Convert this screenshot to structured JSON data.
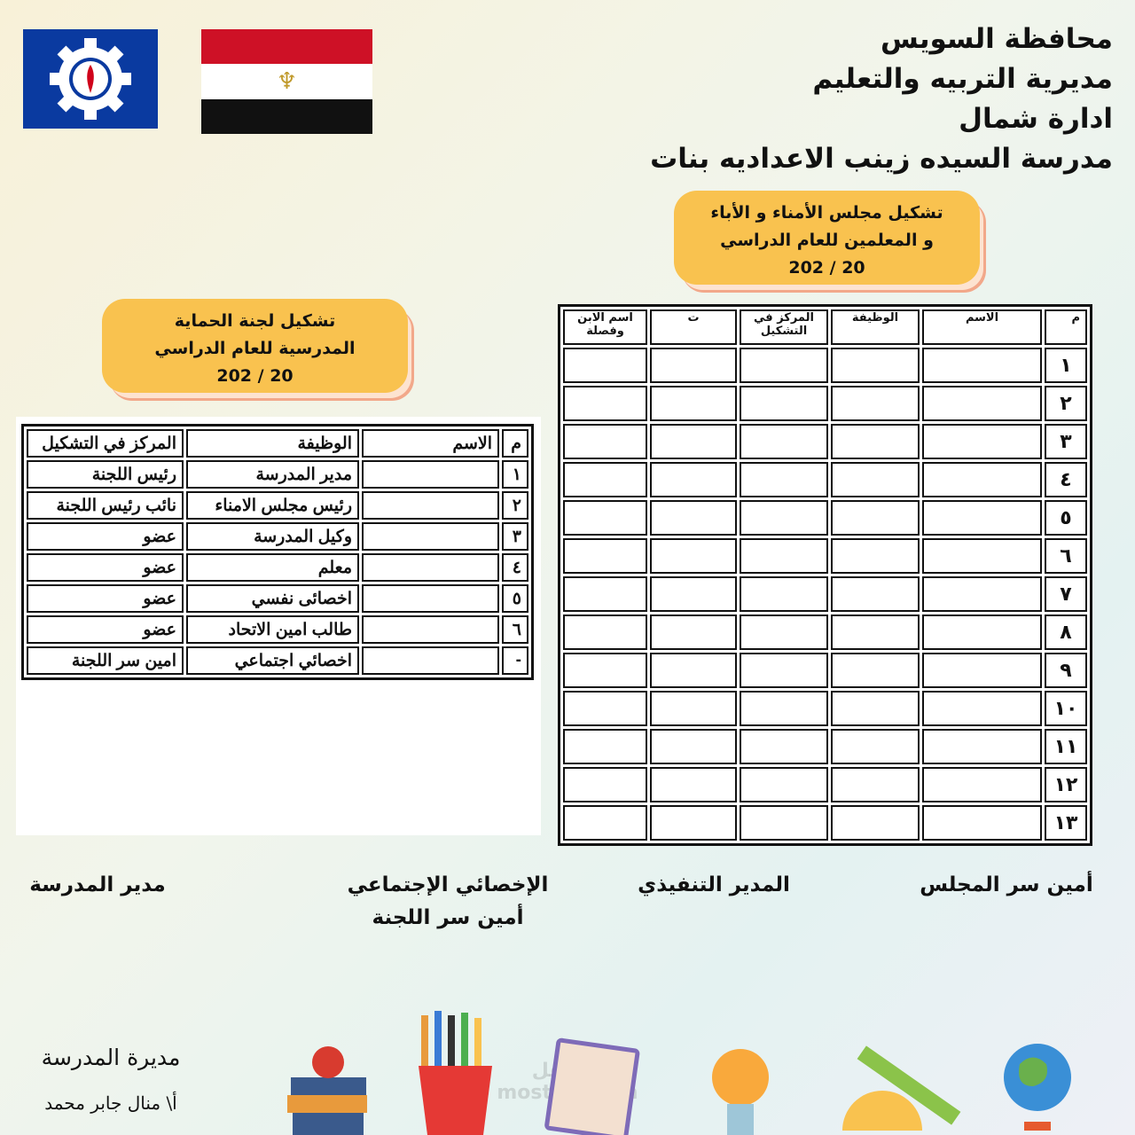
{
  "header": {
    "lines": [
      "محافظة السويس",
      "مديرية التربيه والتعليم",
      "ادارة شمال",
      "مدرسة السيده زينب الاعداديه بنات"
    ]
  },
  "council_box": {
    "lines": [
      "تشكيل مجلس الأمناء و الأباء",
      "و المعلمين للعام الدراسي",
      "202  / 20"
    ]
  },
  "protection_box": {
    "lines": [
      "تشكيل لجنة الحماية",
      "المدرسية للعام الدراسي",
      "202  / 20"
    ]
  },
  "council_table": {
    "headers": [
      "م",
      "الاسم",
      "الوظيفة",
      "المركز في التشكيل",
      "ت",
      "اسم الابن وفصلة"
    ],
    "rows": [
      "١",
      "٢",
      "٣",
      "٤",
      "٥",
      "٦",
      "٧",
      "٨",
      "٩",
      "١٠",
      "١١",
      "١٢",
      "١٣"
    ]
  },
  "protection_table": {
    "headers": [
      "م",
      "الاسم",
      "الوظيفة",
      "المركز في التشكيل"
    ],
    "rows": [
      [
        "١",
        "",
        "مدير المدرسة",
        "رئيس اللجنة"
      ],
      [
        "٢",
        "",
        "رئيس مجلس الامناء",
        "نائب رئيس اللجنة"
      ],
      [
        "٣",
        "",
        "وكيل المدرسة",
        "عضو"
      ],
      [
        "٤",
        "",
        "معلم",
        "عضو"
      ],
      [
        "٥",
        "",
        "اخصائى نفسي",
        "عضو"
      ],
      [
        "٦",
        "",
        "طالب امين الاتحاد",
        "عضو"
      ],
      [
        "-",
        "",
        "اخصائي اجتماعي",
        "امين سر اللجنة"
      ]
    ]
  },
  "signatures": {
    "council_secretary": "أمين سر المجلس",
    "executive_director": "المدير التنفيذي",
    "social_worker": "الإخصائي الإجتماعي",
    "committee_secretary": "أمين سر اللجنة",
    "school_principal": "مدير المدرسة"
  },
  "footer": {
    "title": "مديرة المدرسة",
    "name": "أ\\ منال جابر محمد",
    "watermark": "مستقل mostaql.com"
  },
  "colors": {
    "pill": "#f9c24f",
    "flag_red": "#ce1126",
    "logo_blue": "#0a3aa0"
  }
}
